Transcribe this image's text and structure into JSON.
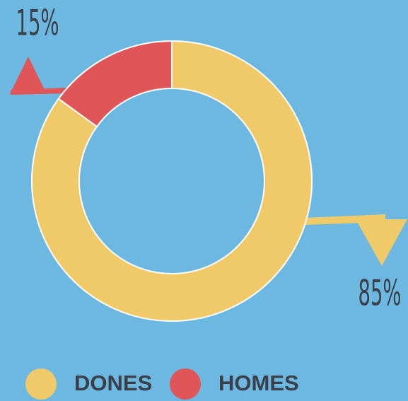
{
  "chart_data": {
    "type": "pie",
    "donut": true,
    "categories": [
      "DONES",
      "HOMES"
    ],
    "values": [
      85,
      15
    ],
    "value_labels": [
      "85%",
      "15%"
    ],
    "colors": [
      "#f0ca68",
      "#e05558"
    ],
    "legend": "bottom"
  }
}
